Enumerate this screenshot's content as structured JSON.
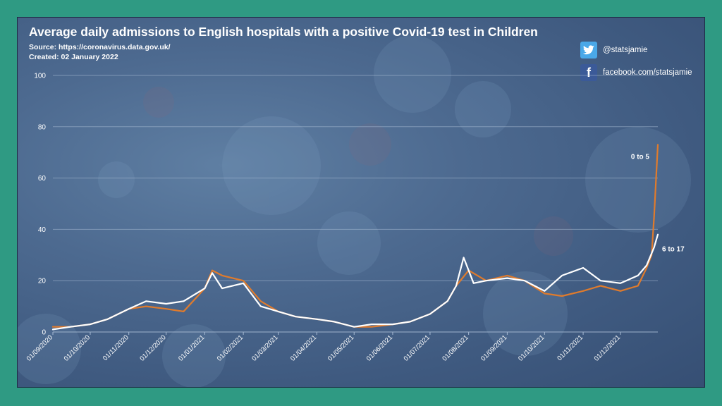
{
  "title": "Average daily admissions to English hospitals with a positive Covid-19 test in Children",
  "source": "Source: https://coronavirus.data.gov.uk/",
  "created": "Created: 02 January 2022",
  "social": {
    "twitter": {
      "icon": "twitter-bird-icon",
      "handle": "@statsjamie"
    },
    "facebook": {
      "icon": "facebook-f-icon",
      "glyph": "f",
      "handle": "facebook.com/statsjamie"
    }
  },
  "colors": {
    "background_outer": "#2f9a83",
    "series_0_5": "#e07b2c",
    "series_6_17": "#ffffff"
  },
  "chart_data": {
    "type": "line",
    "title": "Average daily admissions to English hospitals with a positive Covid-19 test in Children",
    "xlabel": "",
    "ylabel": "",
    "ylim": [
      0,
      100
    ],
    "yticks": [
      "0",
      "20",
      "40",
      "60",
      "80",
      "100"
    ],
    "xticks": [
      "01/09/2020",
      "01/10/2020",
      "01/11/2020",
      "01/12/2020",
      "01/01/2021",
      "01/02/2021",
      "01/03/2021",
      "01/04/2021",
      "01/05/2021",
      "01/06/2021",
      "01/07/2021",
      "01/08/2021",
      "01/09/2021",
      "01/10/2021",
      "01/11/2021",
      "01/12/2021"
    ],
    "grid": true,
    "series": [
      {
        "name": "0 to 5",
        "color": "#e07b2c",
        "x": [
          "01/09/2020",
          "15/09/2020",
          "01/10/2020",
          "15/10/2020",
          "01/11/2020",
          "15/11/2020",
          "01/12/2020",
          "15/12/2020",
          "01/01/2021",
          "07/01/2021",
          "15/01/2021",
          "01/02/2021",
          "15/02/2021",
          "01/03/2021",
          "15/03/2021",
          "01/04/2021",
          "15/04/2021",
          "01/05/2021",
          "15/05/2021",
          "01/06/2021",
          "15/06/2021",
          "01/07/2021",
          "15/07/2021",
          "22/07/2021",
          "01/08/2021",
          "15/08/2021",
          "01/09/2021",
          "15/09/2021",
          "01/10/2021",
          "15/10/2021",
          "01/11/2021",
          "15/11/2021",
          "01/12/2021",
          "15/12/2021",
          "22/12/2021",
          "26/12/2021",
          "28/12/2021",
          "31/12/2021"
        ],
        "values": [
          2,
          2,
          3,
          5,
          9,
          10,
          9,
          8,
          17,
          24,
          22,
          20,
          12,
          8,
          6,
          5,
          4,
          2,
          2,
          3,
          4,
          7,
          12,
          18,
          24,
          20,
          22,
          20,
          15,
          14,
          16,
          18,
          16,
          18,
          25,
          30,
          45,
          73
        ]
      },
      {
        "name": "6 to 17",
        "color": "#ffffff",
        "x": [
          "01/09/2020",
          "15/09/2020",
          "01/10/2020",
          "15/10/2020",
          "01/11/2020",
          "15/11/2020",
          "01/12/2020",
          "15/12/2020",
          "01/01/2021",
          "07/01/2021",
          "15/01/2021",
          "01/02/2021",
          "15/02/2021",
          "01/03/2021",
          "15/03/2021",
          "01/04/2021",
          "15/04/2021",
          "01/05/2021",
          "15/05/2021",
          "01/06/2021",
          "15/06/2021",
          "01/07/2021",
          "15/07/2021",
          "22/07/2021",
          "28/07/2021",
          "05/08/2021",
          "15/08/2021",
          "01/09/2021",
          "15/09/2021",
          "01/10/2021",
          "15/10/2021",
          "01/11/2021",
          "15/11/2021",
          "01/12/2021",
          "15/12/2021",
          "22/12/2021",
          "28/12/2021",
          "31/12/2021"
        ],
        "values": [
          1,
          2,
          3,
          5,
          9,
          12,
          11,
          12,
          17,
          23,
          17,
          19,
          10,
          8,
          6,
          5,
          4,
          2,
          3,
          3,
          4,
          7,
          12,
          18,
          29,
          19,
          20,
          21,
          20,
          16,
          22,
          25,
          20,
          19,
          22,
          26,
          33,
          38
        ]
      }
    ]
  }
}
